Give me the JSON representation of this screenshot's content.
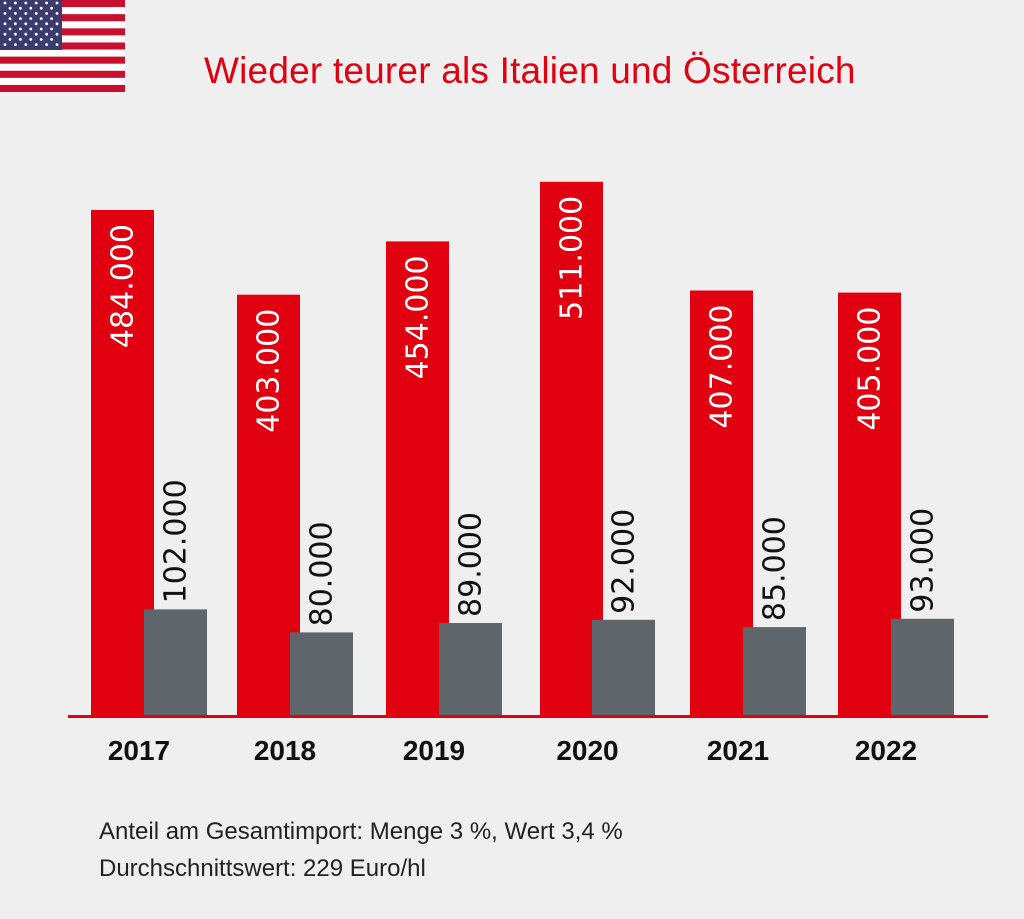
{
  "title": "Wieder teurer als Italien und Österreich",
  "flag": {
    "icon": "us-flag-icon",
    "stripe_red": "#c8102e",
    "canton_blue": "#3c3b6e"
  },
  "colors": {
    "red": "#e1000f",
    "gray": "#5e656b",
    "axis": "#e1000f",
    "label_on_red": "#ffffff",
    "label_on_bg": "#111111"
  },
  "notes": [
    "Anteil am Gesamtimport: Menge 3 %, Wert 3,4 %",
    "Durchschnittswert: 229 Euro/hl"
  ],
  "chart_data": {
    "type": "bar",
    "categories": [
      "2017",
      "2018",
      "2019",
      "2020",
      "2021",
      "2022"
    ],
    "series": [
      {
        "values": [
          484000,
          403000,
          454000,
          511000,
          407000,
          405000
        ],
        "labels": [
          "484.000",
          "403.000",
          "454.000",
          "511.000",
          "407.000",
          "405.000"
        ]
      },
      {
        "values": [
          102000,
          80000,
          89000,
          92000,
          85000,
          93000
        ],
        "labels": [
          "102.000",
          "80.000",
          "89.000",
          "92.000",
          "85.000",
          "93.000"
        ]
      }
    ],
    "title": "Wieder teurer als Italien und Österreich",
    "xlabel": "",
    "ylabel": "",
    "grid": false,
    "legend": "none"
  }
}
